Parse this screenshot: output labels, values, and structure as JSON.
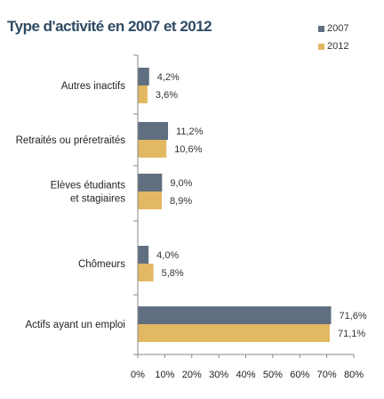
{
  "chart_data": {
    "type": "bar",
    "orientation": "horizontal",
    "title": "Type d'activité en 2007 et 2012",
    "categories": [
      [
        "Autres inactifs"
      ],
      [
        "Retraités ou préretraités"
      ],
      [
        "Elèves étudiants",
        "et stagiaires"
      ],
      [
        "Chômeurs"
      ],
      [
        "Actifs ayant un emploi"
      ]
    ],
    "series": [
      {
        "name": "2007",
        "color": "#5f6f80",
        "values": [
          4.2,
          11.2,
          9.0,
          4.0,
          71.6
        ],
        "labels": [
          "4,2%",
          "11,2%",
          "9,0%",
          "4,0%",
          "71,6%"
        ]
      },
      {
        "name": "2012",
        "color": "#e3b863",
        "values": [
          3.6,
          10.6,
          8.9,
          5.8,
          71.1
        ],
        "labels": [
          "3,6%",
          "10,6%",
          "8,9%",
          "5,8%",
          "71,1%"
        ]
      }
    ],
    "xlim": [
      0,
      80
    ],
    "xticks": [
      "0%",
      "10%",
      "20%",
      "30%",
      "40%",
      "50%",
      "60%",
      "70%",
      "80%"
    ],
    "grid": false,
    "legend_position": "top-right"
  }
}
